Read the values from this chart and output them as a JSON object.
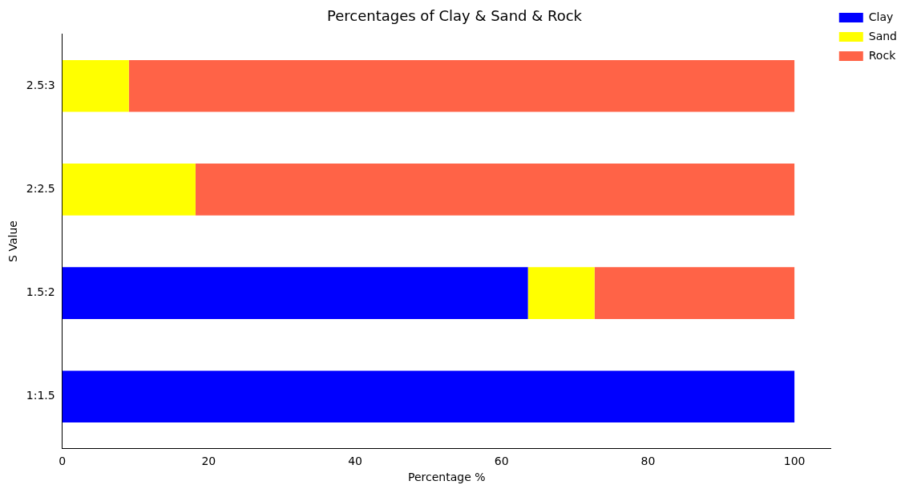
{
  "chart_data": {
    "type": "bar",
    "orientation": "horizontal",
    "stacked": true,
    "title": "Percentages of Clay & Sand & Rock",
    "xlabel": "Percentage %",
    "ylabel": "S Value",
    "categories": [
      "2.5:3",
      "2:2.5",
      "1.5:2",
      "1:1.5"
    ],
    "series": [
      {
        "name": "Clay",
        "color": "#0000ff",
        "values": [
          0,
          0,
          63.6,
          100
        ]
      },
      {
        "name": "Sand",
        "color": "#ffff00",
        "values": [
          9.1,
          18.2,
          9.1,
          0
        ]
      },
      {
        "name": "Rock",
        "color": "#ff6347",
        "values": [
          90.9,
          81.8,
          27.3,
          0
        ]
      }
    ],
    "xlim": [
      0,
      105
    ],
    "xticks": [
      0,
      20,
      40,
      60,
      80,
      100
    ],
    "grid": false,
    "legend": "top right"
  }
}
